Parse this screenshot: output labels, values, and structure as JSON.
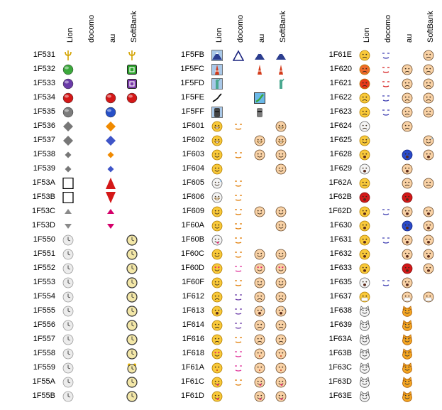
{
  "columns": [
    "Lion",
    "docomo",
    "au",
    "SoftBank"
  ],
  "groups": [
    {
      "rows": [
        {
          "code": "1F531",
          "icons": [
            "trident-icon",
            "",
            "",
            "trident-icon"
          ]
        },
        {
          "code": "1F532",
          "icons": [
            "green-circle-icon",
            "",
            "",
            "green-square-button-icon"
          ]
        },
        {
          "code": "1F533",
          "icons": [
            "purple-circle-icon",
            "",
            "",
            "purple-square-button-icon"
          ]
        },
        {
          "code": "1F534",
          "icons": [
            "red-circle-icon",
            "",
            "red-circle-icon",
            "red-circle-icon"
          ]
        },
        {
          "code": "1F535",
          "icons": [
            "gray-circle-icon",
            "",
            "blue-circle-icon",
            ""
          ]
        },
        {
          "code": "1F536",
          "icons": [
            "gray-diamond-large-icon",
            "",
            "orange-diamond-large-icon",
            ""
          ]
        },
        {
          "code": "1F537",
          "icons": [
            "gray-diamond-large-icon",
            "",
            "blue-diamond-large-icon",
            ""
          ]
        },
        {
          "code": "1F538",
          "icons": [
            "gray-diamond-small-icon",
            "",
            "orange-diamond-small-icon",
            ""
          ]
        },
        {
          "code": "1F539",
          "icons": [
            "gray-diamond-small-icon",
            "",
            "blue-diamond-small-icon",
            ""
          ]
        },
        {
          "code": "1F53A",
          "icons": [
            "missing-box-icon",
            "",
            "red-triangle-up-icon",
            ""
          ]
        },
        {
          "code": "1F53B",
          "icons": [
            "missing-box-icon",
            "",
            "red-triangle-down-icon",
            ""
          ]
        },
        {
          "code": "1F53C",
          "icons": [
            "gray-triangle-up-icon",
            "",
            "pink-triangle-up-icon",
            ""
          ]
        },
        {
          "code": "1F53D",
          "icons": [
            "gray-triangle-down-icon",
            "",
            "pink-triangle-down-icon",
            ""
          ]
        },
        {
          "code": "1F550",
          "icons": [
            "clock-icon",
            "",
            "",
            "clock-color-icon"
          ]
        },
        {
          "code": "1F551",
          "icons": [
            "clock-icon",
            "",
            "",
            "clock-color-icon"
          ]
        },
        {
          "code": "1F552",
          "icons": [
            "clock-icon",
            "",
            "",
            "clock-color-icon"
          ]
        },
        {
          "code": "1F553",
          "icons": [
            "clock-icon",
            "",
            "",
            "clock-color-icon"
          ]
        },
        {
          "code": "1F554",
          "icons": [
            "clock-icon",
            "",
            "",
            "clock-color-icon"
          ]
        },
        {
          "code": "1F555",
          "icons": [
            "clock-icon",
            "",
            "",
            "clock-color-icon"
          ]
        },
        {
          "code": "1F556",
          "icons": [
            "clock-icon",
            "",
            "",
            "clock-color-icon"
          ]
        },
        {
          "code": "1F557",
          "icons": [
            "clock-icon",
            "",
            "",
            "clock-color-icon"
          ]
        },
        {
          "code": "1F558",
          "icons": [
            "clock-icon",
            "",
            "",
            "clock-color-icon"
          ]
        },
        {
          "code": "1F559",
          "icons": [
            "clock-icon",
            "",
            "",
            "alarm-clock-icon"
          ]
        },
        {
          "code": "1F55A",
          "icons": [
            "clock-icon",
            "",
            "",
            "clock-color-icon"
          ]
        },
        {
          "code": "1F55B",
          "icons": [
            "clock-icon",
            "",
            "",
            "clock-color-icon"
          ]
        }
      ]
    },
    {
      "rows": [
        {
          "code": "1F5FB",
          "icons": [
            "mountain-photo-icon",
            "mountain-outline-icon",
            "mountain-color-icon",
            "mountain-color-icon"
          ]
        },
        {
          "code": "1F5FC",
          "icons": [
            "tower-photo-icon",
            "",
            "tower-color-icon",
            "tower-color-icon"
          ]
        },
        {
          "code": "1F5FD",
          "icons": [
            "statue-photo-icon",
            "",
            "",
            "statue-color-icon"
          ]
        },
        {
          "code": "1F5FE",
          "icons": [
            "map-outline-icon",
            "",
            "map-color-icon",
            ""
          ]
        },
        {
          "code": "1F5FF",
          "icons": [
            "moai-photo-icon",
            "",
            "moai-color-icon",
            ""
          ]
        },
        {
          "code": "1F601",
          "icons": [
            "face-grin-icon",
            "face-line-grin-icon",
            "",
            "face-grin-peach-icon"
          ]
        },
        {
          "code": "1F602",
          "icons": [
            "face-grin-icon",
            "",
            "face-laugh-peach-icon",
            "face-grin-peach-icon"
          ]
        },
        {
          "code": "1F603",
          "icons": [
            "face-smile-open-icon",
            "face-line-smile-icon",
            "face-smile-peach-icon",
            "face-smile-peach-icon"
          ]
        },
        {
          "code": "1F604",
          "icons": [
            "face-smile-open-icon",
            "",
            "",
            "face-smile-peach-icon"
          ]
        },
        {
          "code": "1F605",
          "icons": [
            "face-sweat-gray-icon",
            "face-line-sweat-icon",
            "",
            ""
          ]
        },
        {
          "code": "1F606",
          "icons": [
            "face-laugh-gray-icon",
            "face-line-laugh-icon",
            "",
            ""
          ]
        },
        {
          "code": "1F609",
          "icons": [
            "face-wink-icon",
            "face-line-wink-icon",
            "face-wink-peach-icon",
            "face-wink-peach-icon"
          ]
        },
        {
          "code": "1F60A",
          "icons": [
            "face-blush-icon",
            "face-line-blush-icon",
            "",
            "face-blush-peach-icon"
          ]
        },
        {
          "code": "1F60B",
          "icons": [
            "face-tongue-gray-icon",
            "face-line-tongue-icon",
            "",
            ""
          ]
        },
        {
          "code": "1F60C",
          "icons": [
            "face-relieved-icon",
            "face-line-relieved-icon",
            "face-relieved-peach-icon",
            "face-relieved-peach-icon"
          ]
        },
        {
          "code": "1F60D",
          "icons": [
            "face-heart-eyes-icon",
            "face-line-heart-icon",
            "face-heart-peach-icon",
            "face-heart-peach-icon"
          ]
        },
        {
          "code": "1F60F",
          "icons": [
            "face-smirk-icon",
            "face-line-smirk-icon",
            "face-smirk-peach-icon",
            "face-smirk-peach-icon"
          ]
        },
        {
          "code": "1F612",
          "icons": [
            "face-unamused-icon",
            "face-line-unamused-icon",
            "face-unamused-peach-icon",
            "face-unamused-peach-icon"
          ]
        },
        {
          "code": "1F613",
          "icons": [
            "face-cold-sweat-icon",
            "face-line-cold-sweat-icon",
            "face-cold-sweat-peach-icon",
            "face-cold-sweat-peach-icon"
          ]
        },
        {
          "code": "1F614",
          "icons": [
            "face-pensive-icon",
            "face-line-pensive-icon",
            "face-pensive-peach-icon",
            "face-pensive-peach-icon"
          ]
        },
        {
          "code": "1F616",
          "icons": [
            "face-confounded-icon",
            "face-line-confounded-icon",
            "face-confounded-peach-icon",
            "face-confounded-peach-icon"
          ]
        },
        {
          "code": "1F618",
          "icons": [
            "face-kiss-heart-icon",
            "face-line-kiss-icon",
            "face-kiss-peach-icon",
            "face-kiss-peach-icon"
          ]
        },
        {
          "code": "1F61A",
          "icons": [
            "face-kiss-closed-icon",
            "face-line-kiss-closed-icon",
            "face-kiss-closed-peach-icon",
            "face-kiss-closed-peach-icon"
          ]
        },
        {
          "code": "1F61C",
          "icons": [
            "face-tongue-wink-icon",
            "face-line-tongue-wink-icon",
            "face-tongue-wink-peach-icon",
            "face-tongue-wink-peach-icon"
          ]
        },
        {
          "code": "1F61D",
          "icons": [
            "face-tongue-closed-icon",
            "",
            "face-tongue-closed-peach-icon",
            "face-tongue-closed-peach-icon"
          ]
        }
      ]
    },
    {
      "rows": [
        {
          "code": "1F61E",
          "icons": [
            "face-disappointed-icon",
            "face-line-disappointed-icon",
            "",
            "face-disappointed-peach-icon"
          ]
        },
        {
          "code": "1F620",
          "icons": [
            "face-angry-icon",
            "face-line-angry-icon",
            "face-angry-peach-icon",
            "face-angry-peach-icon"
          ]
        },
        {
          "code": "1F621",
          "icons": [
            "face-pout-icon",
            "face-line-pout-icon",
            "face-pout-peach-icon",
            "face-pout-peach-icon"
          ]
        },
        {
          "code": "1F622",
          "icons": [
            "face-cry-icon",
            "face-line-cry-icon",
            "face-cry-peach-icon",
            "face-cry-peach-icon"
          ]
        },
        {
          "code": "1F623",
          "icons": [
            "face-persevere-icon",
            "face-line-persevere-icon",
            "face-persevere-peach-icon",
            "face-persevere-peach-icon"
          ]
        },
        {
          "code": "1F624",
          "icons": [
            "face-triumph-gray-icon",
            "",
            "face-triumph-peach-icon",
            ""
          ]
        },
        {
          "code": "1F625",
          "icons": [
            "face-relieved-sweat-icon",
            "",
            "",
            "face-relieved-sweat-peach-icon"
          ]
        },
        {
          "code": "1F628",
          "icons": [
            "face-fearful-icon",
            "",
            "face-fearful-blue-icon",
            "face-fearful-peach-icon"
          ]
        },
        {
          "code": "1F629",
          "icons": [
            "face-weary-gray-icon",
            "",
            "face-weary-peach-icon",
            ""
          ]
        },
        {
          "code": "1F62A",
          "icons": [
            "face-sleepy-icon",
            "",
            "face-sleepy-peach-icon",
            "face-sleepy-peach-icon"
          ]
        },
        {
          "code": "1F62B",
          "icons": [
            "face-tired-gray-icon",
            "",
            "face-tired-peach-icon",
            ""
          ]
        },
        {
          "code": "1F62D",
          "icons": [
            "face-sob-icon",
            "face-line-sob-icon",
            "face-sob-peach-icon",
            "face-sob-peach-icon"
          ]
        },
        {
          "code": "1F630",
          "icons": [
            "face-cold-icon",
            "",
            "face-cold-blue-icon",
            "face-cold-peach-icon"
          ]
        },
        {
          "code": "1F631",
          "icons": [
            "face-scream-icon",
            "face-line-scream-icon",
            "face-scream-peach-icon",
            "face-scream-peach-icon"
          ]
        },
        {
          "code": "1F632",
          "icons": [
            "face-astonished-icon",
            "",
            "face-astonished-peach-icon",
            "face-astonished-peach-icon"
          ]
        },
        {
          "code": "1F633",
          "icons": [
            "face-flushed-icon",
            "",
            "face-flushed-red-icon",
            "face-flushed-peach-icon"
          ]
        },
        {
          "code": "1F635",
          "icons": [
            "face-dizzy-gray-icon",
            "face-line-dizzy-icon",
            "face-dizzy-peach-icon",
            ""
          ]
        },
        {
          "code": "1F637",
          "icons": [
            "face-mask-icon",
            "",
            "face-mask-peach-icon",
            "face-mask-peach-icon"
          ]
        },
        {
          "code": "1F638",
          "icons": [
            "cat-grin-gray-icon",
            "",
            "cat-grin-orange-icon",
            ""
          ]
        },
        {
          "code": "1F639",
          "icons": [
            "cat-joy-gray-icon",
            "",
            "cat-joy-orange-icon",
            ""
          ]
        },
        {
          "code": "1F63A",
          "icons": [
            "cat-smile-gray-icon",
            "",
            "cat-smile-orange-icon",
            ""
          ]
        },
        {
          "code": "1F63B",
          "icons": [
            "cat-heart-gray-icon",
            "",
            "cat-heart-orange-icon",
            ""
          ]
        },
        {
          "code": "1F63C",
          "icons": [
            "cat-wry-gray-icon",
            "",
            "cat-wry-orange-icon",
            ""
          ]
        },
        {
          "code": "1F63D",
          "icons": [
            "cat-kiss-gray-icon",
            "",
            "cat-kiss-orange-icon",
            ""
          ]
        },
        {
          "code": "1F63E",
          "icons": [
            "cat-pout-gray-icon",
            "",
            "cat-pout-orange-icon",
            ""
          ]
        }
      ]
    }
  ]
}
